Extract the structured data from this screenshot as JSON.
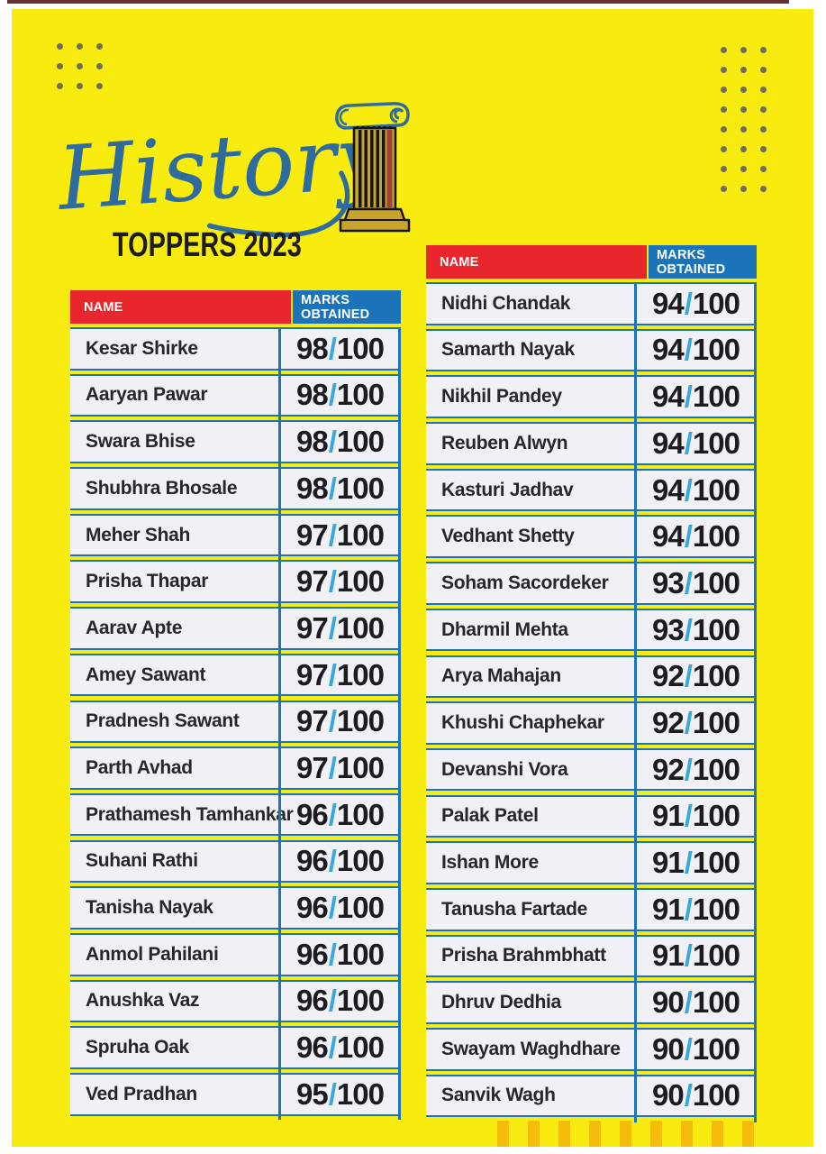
{
  "title": {
    "script": "History",
    "subtitle": "TOPPERS 2023"
  },
  "table_headers": {
    "name": "NAME",
    "marks": "MARKS OBTAINED"
  },
  "marks_format": {
    "separator": "/",
    "total": "100"
  },
  "tables": [
    {
      "id": "table-left",
      "rows": [
        {
          "name": "Kesar Shirke",
          "score": "98",
          "total": "100"
        },
        {
          "name": "Aaryan Pawar",
          "score": "98",
          "total": "100"
        },
        {
          "name": "Swara Bhise",
          "score": "98",
          "total": "100"
        },
        {
          "name": "Shubhra Bhosale",
          "score": "98",
          "total": "100"
        },
        {
          "name": "Meher Shah",
          "score": "97",
          "total": "100"
        },
        {
          "name": "Prisha Thapar",
          "score": "97",
          "total": "100"
        },
        {
          "name": "Aarav Apte",
          "score": "97",
          "total": "100"
        },
        {
          "name": "Amey Sawant",
          "score": "97",
          "total": "100"
        },
        {
          "name": "Pradnesh Sawant",
          "score": "97",
          "total": "100"
        },
        {
          "name": "Parth Avhad",
          "score": "97",
          "total": "100"
        },
        {
          "name": "Prathamesh Tamhankar",
          "score": "96",
          "total": "100"
        },
        {
          "name": "Suhani Rathi",
          "score": "96",
          "total": "100"
        },
        {
          "name": "Tanisha Nayak",
          "score": "96",
          "total": "100"
        },
        {
          "name": "Anmol Pahilani",
          "score": "96",
          "total": "100"
        },
        {
          "name": "Anushka Vaz",
          "score": "96",
          "total": "100"
        },
        {
          "name": "Spruha Oak",
          "score": "96",
          "total": "100"
        },
        {
          "name": "Ved Pradhan",
          "score": "95",
          "total": "100"
        }
      ]
    },
    {
      "id": "table-right",
      "rows": [
        {
          "name": "Nidhi Chandak",
          "score": "94",
          "total": "100"
        },
        {
          "name": "Samarth Nayak",
          "score": "94",
          "total": "100"
        },
        {
          "name": "Nikhil Pandey",
          "score": "94",
          "total": "100"
        },
        {
          "name": "Reuben Alwyn",
          "score": "94",
          "total": "100"
        },
        {
          "name": "Kasturi Jadhav",
          "score": "94",
          "total": "100"
        },
        {
          "name": "Vedhant Shetty",
          "score": "94",
          "total": "100"
        },
        {
          "name": "Soham Sacordeker",
          "score": "93",
          "total": "100"
        },
        {
          "name": "Dharmil Mehta",
          "score": "93",
          "total": "100"
        },
        {
          "name": "Arya Mahajan",
          "score": "92",
          "total": "100"
        },
        {
          "name": "Khushi Chaphekar",
          "score": "92",
          "total": "100"
        },
        {
          "name": "Devanshi Vora",
          "score": "92",
          "total": "100"
        },
        {
          "name": "Palak Patel",
          "score": "91",
          "total": "100"
        },
        {
          "name": "Ishan More",
          "score": "91",
          "total": "100"
        },
        {
          "name": "Tanusha Fartade",
          "score": "91",
          "total": "100"
        },
        {
          "name": "Prisha Brahmbhatt",
          "score": "91",
          "total": "100"
        },
        {
          "name": "Dhruv Dedhia",
          "score": "90",
          "total": "100"
        },
        {
          "name": "Swayam Waghdhare",
          "score": "90",
          "total": "100"
        },
        {
          "name": "Sanvik Wagh",
          "score": "90",
          "total": "100"
        }
      ]
    }
  ],
  "decor": {
    "left_dot_grid": {
      "cols": 3,
      "rows": 3
    },
    "right_dot_grid": {
      "cols": 3,
      "rows": 8
    },
    "bottom_bars": {
      "count": 9
    },
    "column_icon": "greek-column"
  },
  "colors": {
    "yellow": "#F7EB10",
    "red": "#E8262D",
    "header_blue": "#1B74BA",
    "slash_blue": "#35A8E0",
    "row_bg": "#F1F0F5",
    "script_blue": "#2E6B9E",
    "dot": "#6E6C5C",
    "bar_orange": "#F5BC0C",
    "pillar_gold": "#C9A42D",
    "pillar_red": "#A34036"
  }
}
